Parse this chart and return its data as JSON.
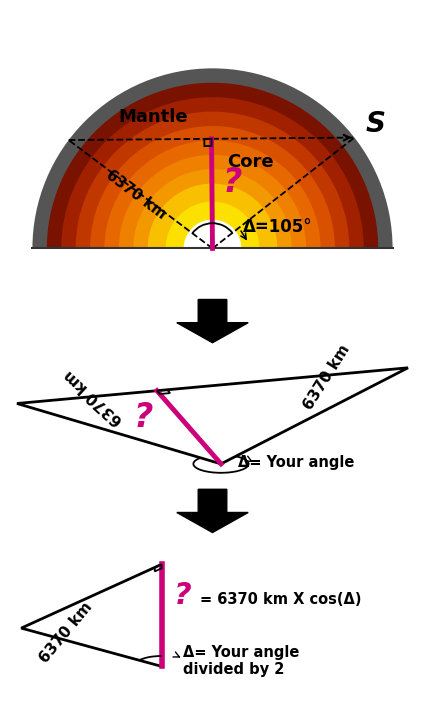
{
  "bg_color": "#ffffff",
  "magenta": "#cc007a",
  "black": "#000000",
  "label_mantle": "Mantle",
  "label_core": "Core",
  "label_S": "S",
  "label_6370": "6370 km",
  "label_delta_earth": "Δ=105°",
  "label_question": "?",
  "triangle1_label_left": "6370 km",
  "triangle1_label_right": "6370 km",
  "triangle1_label_angle": "Δ= Your angle",
  "triangle2_label_left": "6370 km",
  "triangle2_formula": "= 6370 km X cos(Δ)",
  "triangle2_label_angle": "Δ= Your angle\ndivided by 2",
  "layer_radii": [
    1.0,
    0.92,
    0.84,
    0.76,
    0.68,
    0.6,
    0.52,
    0.44,
    0.36,
    0.26,
    0.16
  ],
  "layer_colors": [
    "#555555",
    "#7a1200",
    "#a02000",
    "#c03800",
    "#d85000",
    "#e86800",
    "#f08000",
    "#f49800",
    "#f8c000",
    "#fce000",
    "#fef800"
  ],
  "inner_core_r": 0.16,
  "inner_core_color": "#ffffff"
}
